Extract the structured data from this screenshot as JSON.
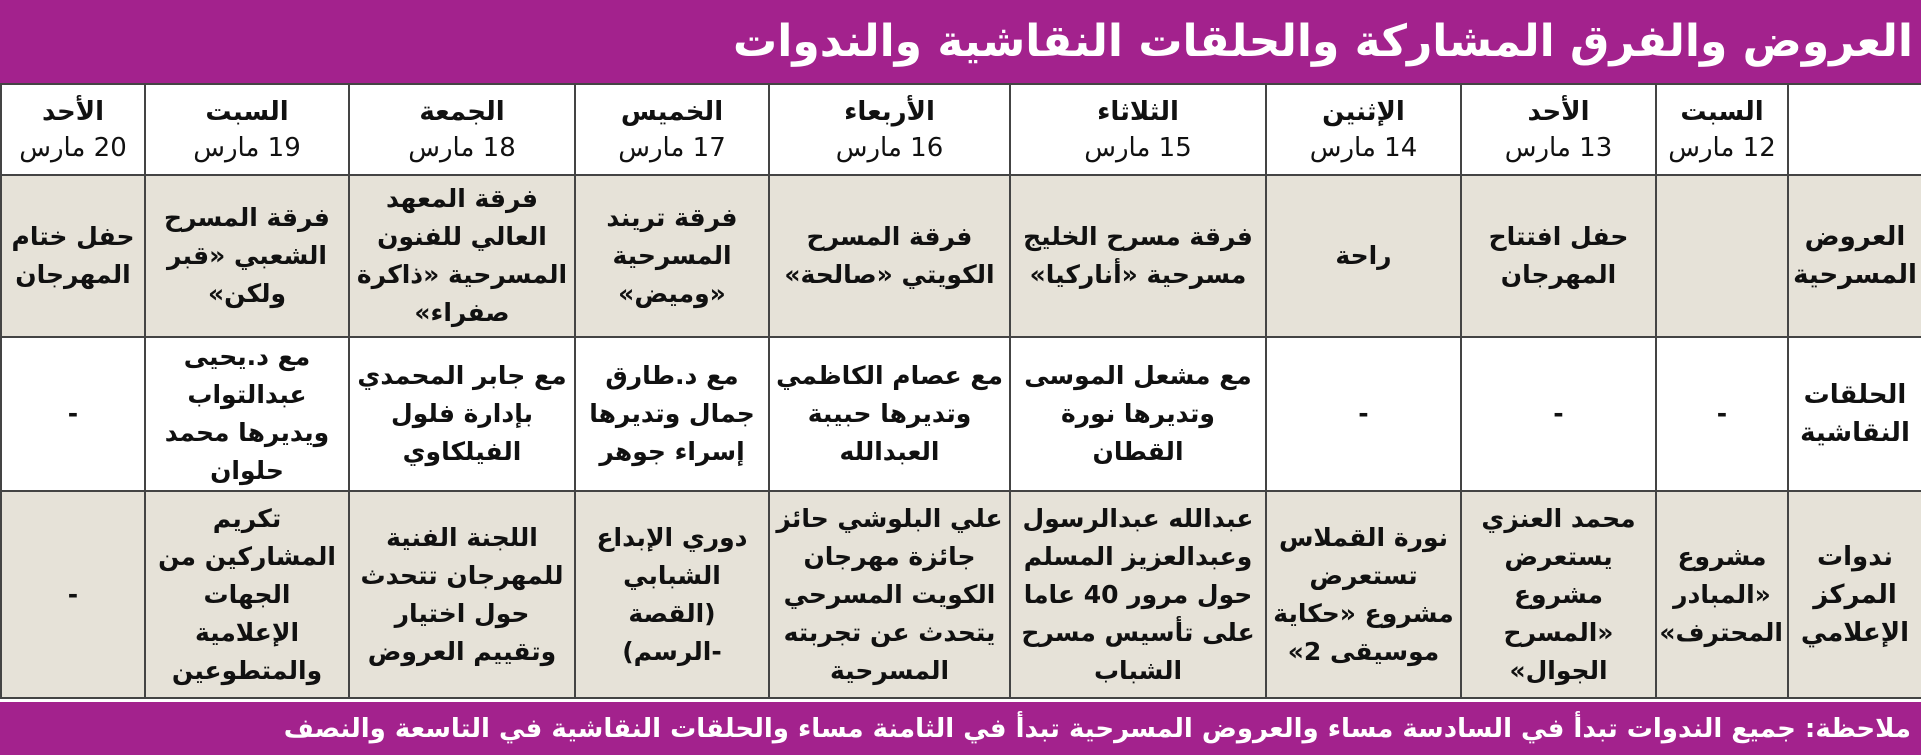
{
  "title": "العروض والفرق المشاركة والحلقات النقاشية والندوات",
  "days": [
    {
      "day": "السبت",
      "date": "12 مارس"
    },
    {
      "day": "الأحد",
      "date": "13 مارس"
    },
    {
      "day": "الإثنين",
      "date": "14 مارس"
    },
    {
      "day": "الثلاثاء",
      "date": "15 مارس"
    },
    {
      "day": "الأربعاء",
      "date": "16 مارس"
    },
    {
      "day": "الخميس",
      "date": "17 مارس"
    },
    {
      "day": "الجمعة",
      "date": "18 مارس"
    },
    {
      "day": "السبت",
      "date": "19 مارس"
    },
    {
      "day": "الأحد",
      "date": "20 مارس"
    }
  ],
  "rows": [
    {
      "label": "العروض المسرحية",
      "cells": [
        "",
        "حفل افتتاح المهرجان",
        "راحة",
        "فرقة مسرح الخليج مسرحية «أناركيا»",
        "فرقة المسرح الكويتي «صالحة»",
        "فرقة تريند المسرحية «وميض»",
        "فرقة المعهد العالي للفنون المسرحية «ذاكرة صفراء»",
        "فرقة المسرح الشعبي «قبر ولكن»",
        "حفل ختام المهرجان"
      ]
    },
    {
      "label": "الحلقات النقاشية",
      "cells": [
        "-",
        "-",
        "-",
        "مع مشعل الموسى وتديرها نورة القطان",
        "مع عصام الكاظمي وتديرها حبيبة العبدالله",
        "مع د.طارق جمال وتديرها إسراء جوهر",
        "مع جابر المحمدي بإدارة فلول الفيلكاوي",
        "مع د.يحيى عبدالتواب ويديرها محمد حلوان",
        "-"
      ]
    },
    {
      "label": "ندوات المركز الإعلامي",
      "cells": [
        "مشروع «المبادر المحترف»",
        "محمد العنزي يستعرض مشروع «المسرح الجوال»",
        "نورة القملاس تستعرض مشروع «حكاية موسيقى 2»",
        "عبدالله عبدالرسول وعبدالعزيز المسلم حول مرور 40 عاما على تأسيس مسرح الشباب",
        "علي البلوشي حائز جائزة مهرجان الكويت المسرحي يتحدث عن تجربته المسرحية",
        "دوري الإبداع الشبابي (القصة -الرسم)",
        "اللجنة الفنية للمهرجان تتحدث حول اختيار وتقييم العروض",
        "تكريم المشاركين من الجهات الإعلامية والمتطوعين",
        "-"
      ]
    }
  ],
  "footer_note": "ملاحظة: جميع الندوات تبدأ في السادسة مساء والعروض المسرحية تبدأ في الثامنة مساء والحلقات النقاشية في التاسعة والنصف",
  "colors": {
    "header_purple": "#a3228d",
    "cell_beige": "#e6e2d8"
  }
}
